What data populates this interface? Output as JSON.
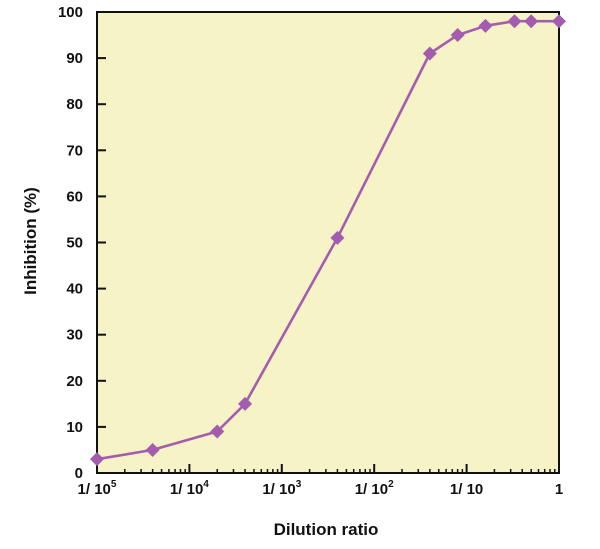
{
  "chart_data": {
    "type": "line",
    "title": "",
    "xlabel": "Dilution ratio",
    "ylabel": "Inhibition (%)",
    "x_scale": "log",
    "xlim": [
      1e-05,
      1
    ],
    "ylim": [
      0,
      100
    ],
    "y_ticks": [
      0,
      10,
      20,
      30,
      40,
      50,
      60,
      70,
      80,
      90,
      100
    ],
    "x_ticks": [
      {
        "value": 1e-05,
        "label": "1/ 10",
        "sup": "5"
      },
      {
        "value": 0.0001,
        "label": "1/ 10",
        "sup": "4"
      },
      {
        "value": 0.001,
        "label": "1/ 10",
        "sup": "3"
      },
      {
        "value": 0.01,
        "label": "1/ 10",
        "sup": "2"
      },
      {
        "value": 0.1,
        "label": "1/ 10",
        "sup": ""
      },
      {
        "value": 1,
        "label": "1",
        "sup": ""
      }
    ],
    "grid": false,
    "legend": "none",
    "series": [
      {
        "marker": "diamond",
        "x": [
          1e-05,
          4e-05,
          0.0002,
          0.0004,
          0.004,
          0.04,
          0.08,
          0.16,
          0.33,
          0.5,
          1
        ],
        "y": [
          3,
          5,
          9,
          15,
          51,
          91,
          95,
          97,
          98,
          98,
          98
        ]
      }
    ],
    "colors": {
      "plot_background": "#f6f4c6",
      "line": "#a45cae",
      "marker": "#a45cae",
      "axis": "#111111"
    }
  }
}
